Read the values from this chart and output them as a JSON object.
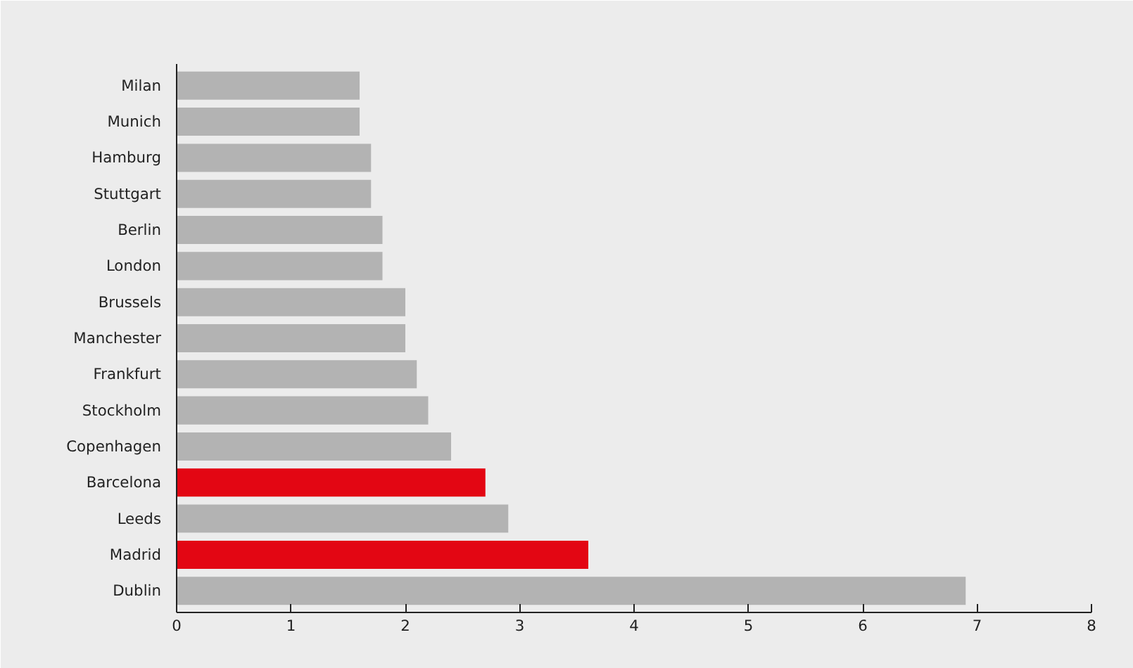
{
  "chart_data": {
    "type": "bar",
    "orientation": "horizontal",
    "categories": [
      "Milan",
      "Munich",
      "Hamburg",
      "Stuttgart",
      "Berlin",
      "London",
      "Brussels",
      "Manchester",
      "Frankfurt",
      "Stockholm",
      "Copenhagen",
      "Barcelona",
      "Leeds",
      "Madrid",
      "Dublin"
    ],
    "values": [
      1.6,
      1.6,
      1.7,
      1.7,
      1.8,
      1.8,
      2.0,
      2.0,
      2.1,
      2.2,
      2.4,
      2.7,
      2.9,
      3.6,
      6.9
    ],
    "colors": [
      "#b3b3b3",
      "#b3b3b3",
      "#b3b3b3",
      "#b3b3b3",
      "#b3b3b3",
      "#b3b3b3",
      "#b3b3b3",
      "#b3b3b3",
      "#b3b3b3",
      "#b3b3b3",
      "#b3b3b3",
      "#e30613",
      "#b3b3b3",
      "#e30613",
      "#b3b3b3"
    ],
    "xlim": [
      0,
      8
    ],
    "xticks": [
      0,
      1,
      2,
      3,
      4,
      5,
      6,
      7,
      8
    ],
    "grid": false
  }
}
